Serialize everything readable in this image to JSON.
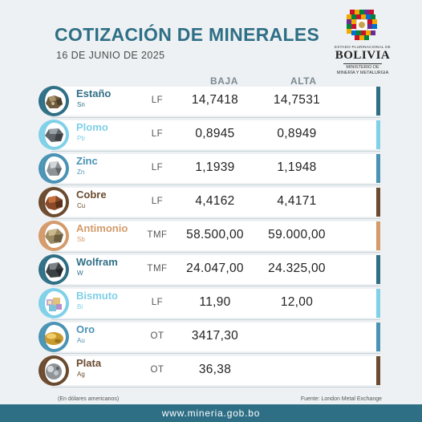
{
  "header": {
    "title": "COTIZACIÓN DE MINERALES",
    "date": "16 DE JUNIO DE 2025"
  },
  "logo": {
    "state": "ESTADO PLURINACIONAL DE",
    "country": "BOLIVIA",
    "ministry_line1": "MINISTERIO DE",
    "ministry_line2": "MINERÍA Y METALURGIA"
  },
  "columns": {
    "low": "BAJA",
    "high": "ALTA"
  },
  "minerals": [
    {
      "name": "Estaño",
      "symbol": "Sn",
      "unit": "LF",
      "low": "14,7418",
      "high": "14,7531",
      "color": "#2f6f86",
      "icon": "tin-ore-icon"
    },
    {
      "name": "Plomo",
      "symbol": "Pb",
      "unit": "LF",
      "low": "0,8945",
      "high": "0,8949",
      "color": "#7fd0e8",
      "icon": "lead-ore-icon"
    },
    {
      "name": "Zinc",
      "symbol": "Zn",
      "unit": "LF",
      "low": "1,1939",
      "high": "1,1948",
      "color": "#4a93b4",
      "icon": "zinc-ore-icon"
    },
    {
      "name": "Cobre",
      "symbol": "Cu",
      "unit": "LF",
      "low": "4,4162",
      "high": "4,4171",
      "color": "#6b4a2e",
      "icon": "copper-ore-icon"
    },
    {
      "name": "Antimonio",
      "symbol": "Sb",
      "unit": "TMF",
      "low": "58.500,00",
      "high": "59.000,00",
      "color": "#d49a6a",
      "icon": "antimony-ore-icon"
    },
    {
      "name": "Wolfram",
      "symbol": "W",
      "unit": "TMF",
      "low": "24.047,00",
      "high": "24.325,00",
      "color": "#2f6f86",
      "icon": "wolfram-ore-icon"
    },
    {
      "name": "Bismuto",
      "symbol": "Bi",
      "unit": "LF",
      "low": "11,90",
      "high": "12,00",
      "color": "#7fd0e8",
      "icon": "bismuth-crystal-icon"
    },
    {
      "name": "Oro",
      "symbol": "Au",
      "unit": "OT",
      "low": "3417,30",
      "high": "",
      "color": "#4a93b4",
      "icon": "gold-nugget-icon"
    },
    {
      "name": "Plata",
      "symbol": "Ag",
      "unit": "OT",
      "low": "36,38",
      "high": "",
      "color": "#6b4a2e",
      "icon": "silver-ore-icon"
    }
  ],
  "footnotes": {
    "currency": "(En dólares americanos)",
    "source": "Fuente: London Metal Exchange"
  },
  "footer": {
    "url": "www.mineria.gob.bo"
  }
}
